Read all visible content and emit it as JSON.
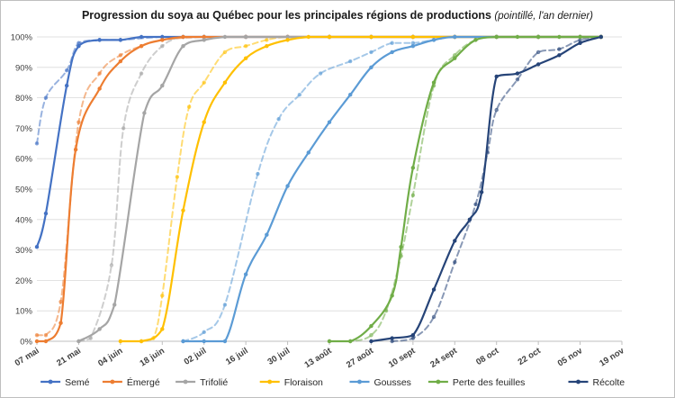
{
  "chart_data": {
    "type": "line",
    "title": "Progression du soya au Québec pour les principales régions de productions",
    "subtitle": "(pointillé, l'an dernier)",
    "ylim": [
      0,
      100
    ],
    "yticks": [
      "0%",
      "10%",
      "20%",
      "30%",
      "40%",
      "50%",
      "60%",
      "70%",
      "80%",
      "90%",
      "100%"
    ],
    "x_dates": [
      "07 mai",
      "21 mai",
      "04 juin",
      "18 juin",
      "02 juil",
      "16 juil",
      "30 juil",
      "13 août",
      "27 août",
      "10 sept",
      "24 sept",
      "08 oct",
      "22 oct",
      "05 nov",
      "19 nov"
    ],
    "x_axis_start": "2023-05-07",
    "x_axis_end": "2023-11-19",
    "grid": "horizontal",
    "legend_position": "bottom",
    "series": [
      {
        "name": "Semé",
        "color": "#4472C4",
        "current": [
          [
            "2023-05-07",
            31
          ],
          [
            "2023-05-10",
            42
          ],
          [
            "2023-05-17",
            84
          ],
          [
            "2023-05-21",
            97
          ],
          [
            "2023-05-28",
            99
          ],
          [
            "2023-06-04",
            99
          ],
          [
            "2023-06-11",
            100
          ],
          [
            "2023-06-18",
            100
          ],
          [
            "2023-06-25",
            100
          ],
          [
            "2023-07-02",
            100
          ],
          [
            "2023-07-16",
            100
          ],
          [
            "2023-07-30",
            100
          ],
          [
            "2023-08-13",
            100
          ],
          [
            "2023-08-27",
            100
          ],
          [
            "2023-09-10",
            100
          ],
          [
            "2023-09-24",
            100
          ],
          [
            "2023-10-08",
            100
          ],
          [
            "2023-10-22",
            100
          ],
          [
            "2023-11-05",
            100
          ],
          [
            "2023-11-12",
            100
          ]
        ],
        "previous": [
          [
            "2023-05-07",
            65
          ],
          [
            "2023-05-10",
            80
          ],
          [
            "2023-05-17",
            89
          ],
          [
            "2023-05-21",
            98
          ],
          [
            "2023-05-28",
            99
          ],
          [
            "2023-06-04",
            99
          ],
          [
            "2023-06-18",
            100
          ],
          [
            "2023-07-02",
            100
          ],
          [
            "2023-07-16",
            100
          ],
          [
            "2023-07-30",
            100
          ],
          [
            "2023-08-13",
            100
          ],
          [
            "2023-08-27",
            100
          ],
          [
            "2023-09-10",
            100
          ],
          [
            "2023-09-24",
            100
          ],
          [
            "2023-10-08",
            100
          ],
          [
            "2023-10-22",
            100
          ],
          [
            "2023-11-05",
            100
          ],
          [
            "2023-11-12",
            100
          ]
        ]
      },
      {
        "name": "Émergé",
        "color": "#ED7D31",
        "current": [
          [
            "2023-05-07",
            0
          ],
          [
            "2023-05-10",
            0
          ],
          [
            "2023-05-15",
            6
          ],
          [
            "2023-05-20",
            63
          ],
          [
            "2023-05-28",
            83
          ],
          [
            "2023-06-04",
            92
          ],
          [
            "2023-06-11",
            97
          ],
          [
            "2023-06-18",
            99
          ],
          [
            "2023-06-25",
            100
          ],
          [
            "2023-07-02",
            100
          ],
          [
            "2023-07-16",
            100
          ],
          [
            "2023-07-30",
            100
          ],
          [
            "2023-08-13",
            100
          ],
          [
            "2023-08-27",
            100
          ],
          [
            "2023-09-10",
            100
          ],
          [
            "2023-09-24",
            100
          ],
          [
            "2023-10-08",
            100
          ],
          [
            "2023-10-22",
            100
          ],
          [
            "2023-11-05",
            100
          ],
          [
            "2023-11-12",
            100
          ]
        ],
        "previous": [
          [
            "2023-05-07",
            2
          ],
          [
            "2023-05-10",
            2
          ],
          [
            "2023-05-15",
            13
          ],
          [
            "2023-05-21",
            72
          ],
          [
            "2023-05-28",
            88
          ],
          [
            "2023-06-04",
            94
          ],
          [
            "2023-06-11",
            97
          ],
          [
            "2023-06-18",
            99
          ],
          [
            "2023-07-02",
            100
          ],
          [
            "2023-07-16",
            100
          ],
          [
            "2023-07-30",
            100
          ],
          [
            "2023-08-13",
            100
          ],
          [
            "2023-08-27",
            100
          ],
          [
            "2023-09-10",
            100
          ],
          [
            "2023-09-24",
            100
          ],
          [
            "2023-10-08",
            100
          ],
          [
            "2023-10-22",
            100
          ],
          [
            "2023-11-05",
            100
          ],
          [
            "2023-11-12",
            100
          ]
        ]
      },
      {
        "name": "Trifolié",
        "color": "#A5A5A5",
        "current": [
          [
            "2023-05-21",
            0
          ],
          [
            "2023-05-28",
            4
          ],
          [
            "2023-06-02",
            12
          ],
          [
            "2023-06-12",
            75
          ],
          [
            "2023-06-18",
            84
          ],
          [
            "2023-06-25",
            97
          ],
          [
            "2023-07-02",
            99
          ],
          [
            "2023-07-09",
            100
          ],
          [
            "2023-07-16",
            100
          ],
          [
            "2023-07-30",
            100
          ],
          [
            "2023-08-13",
            100
          ],
          [
            "2023-08-27",
            100
          ],
          [
            "2023-09-10",
            100
          ],
          [
            "2023-09-24",
            100
          ],
          [
            "2023-10-08",
            100
          ],
          [
            "2023-10-22",
            100
          ],
          [
            "2023-11-05",
            100
          ],
          [
            "2023-11-12",
            100
          ]
        ],
        "previous": [
          [
            "2023-05-21",
            0
          ],
          [
            "2023-05-25",
            1
          ],
          [
            "2023-06-01",
            25
          ],
          [
            "2023-06-05",
            70
          ],
          [
            "2023-06-11",
            88
          ],
          [
            "2023-06-18",
            97
          ],
          [
            "2023-06-25",
            100
          ],
          [
            "2023-07-02",
            100
          ],
          [
            "2023-07-16",
            100
          ],
          [
            "2023-07-30",
            100
          ],
          [
            "2023-08-13",
            100
          ],
          [
            "2023-08-27",
            100
          ],
          [
            "2023-09-10",
            100
          ],
          [
            "2023-09-24",
            100
          ],
          [
            "2023-10-08",
            100
          ],
          [
            "2023-10-22",
            100
          ],
          [
            "2023-11-05",
            100
          ],
          [
            "2023-11-12",
            100
          ]
        ]
      },
      {
        "name": "Floraison",
        "color": "#FFC000",
        "current": [
          [
            "2023-06-04",
            0
          ],
          [
            "2023-06-11",
            0
          ],
          [
            "2023-06-18",
            4
          ],
          [
            "2023-06-25",
            43
          ],
          [
            "2023-07-02",
            72
          ],
          [
            "2023-07-09",
            85
          ],
          [
            "2023-07-16",
            93
          ],
          [
            "2023-07-23",
            97
          ],
          [
            "2023-07-30",
            99
          ],
          [
            "2023-08-06",
            100
          ],
          [
            "2023-08-13",
            100
          ],
          [
            "2023-08-27",
            100
          ],
          [
            "2023-09-10",
            100
          ],
          [
            "2023-09-24",
            100
          ],
          [
            "2023-10-08",
            100
          ],
          [
            "2023-10-22",
            100
          ],
          [
            "2023-11-05",
            100
          ],
          [
            "2023-11-12",
            100
          ]
        ],
        "previous": [
          [
            "2023-06-11",
            0
          ],
          [
            "2023-06-15",
            1
          ],
          [
            "2023-06-18",
            15
          ],
          [
            "2023-06-23",
            54
          ],
          [
            "2023-06-27",
            77
          ],
          [
            "2023-07-02",
            85
          ],
          [
            "2023-07-09",
            95
          ],
          [
            "2023-07-16",
            97
          ],
          [
            "2023-07-23",
            99
          ],
          [
            "2023-07-30",
            100
          ],
          [
            "2023-08-13",
            100
          ],
          [
            "2023-08-27",
            100
          ],
          [
            "2023-09-10",
            100
          ],
          [
            "2023-09-24",
            100
          ],
          [
            "2023-10-08",
            100
          ],
          [
            "2023-10-22",
            100
          ],
          [
            "2023-11-05",
            100
          ],
          [
            "2023-11-12",
            100
          ]
        ]
      },
      {
        "name": "Gousses",
        "color": "#5B9BD5",
        "current": [
          [
            "2023-06-25",
            0
          ],
          [
            "2023-07-02",
            0
          ],
          [
            "2023-07-09",
            0
          ],
          [
            "2023-07-16",
            22
          ],
          [
            "2023-07-23",
            35
          ],
          [
            "2023-07-30",
            51
          ],
          [
            "2023-08-06",
            62
          ],
          [
            "2023-08-13",
            72
          ],
          [
            "2023-08-20",
            81
          ],
          [
            "2023-08-27",
            90
          ],
          [
            "2023-09-03",
            95
          ],
          [
            "2023-09-10",
            97
          ],
          [
            "2023-09-17",
            99
          ],
          [
            "2023-09-24",
            100
          ],
          [
            "2023-10-08",
            100
          ],
          [
            "2023-10-22",
            100
          ],
          [
            "2023-11-05",
            100
          ],
          [
            "2023-11-12",
            100
          ]
        ],
        "previous": [
          [
            "2023-06-25",
            0
          ],
          [
            "2023-07-02",
            3
          ],
          [
            "2023-07-09",
            12
          ],
          [
            "2023-07-20",
            55
          ],
          [
            "2023-07-27",
            73
          ],
          [
            "2023-08-03",
            81
          ],
          [
            "2023-08-10",
            88
          ],
          [
            "2023-08-20",
            92
          ],
          [
            "2023-08-27",
            95
          ],
          [
            "2023-09-03",
            98
          ],
          [
            "2023-09-10",
            98
          ],
          [
            "2023-09-17",
            99
          ],
          [
            "2023-09-24",
            100
          ],
          [
            "2023-10-08",
            100
          ],
          [
            "2023-10-22",
            100
          ],
          [
            "2023-11-05",
            100
          ],
          [
            "2023-11-12",
            100
          ]
        ]
      },
      {
        "name": "Perte des feuilles",
        "color": "#70AD47",
        "current": [
          [
            "2023-08-13",
            0
          ],
          [
            "2023-08-20",
            0
          ],
          [
            "2023-08-27",
            5
          ],
          [
            "2023-09-03",
            15
          ],
          [
            "2023-09-06",
            31
          ],
          [
            "2023-09-10",
            57
          ],
          [
            "2023-09-17",
            85
          ],
          [
            "2023-09-24",
            93
          ],
          [
            "2023-10-01",
            99
          ],
          [
            "2023-10-08",
            100
          ],
          [
            "2023-10-15",
            100
          ],
          [
            "2023-10-22",
            100
          ],
          [
            "2023-10-29",
            100
          ],
          [
            "2023-11-05",
            100
          ],
          [
            "2023-11-12",
            100
          ]
        ],
        "previous": [
          [
            "2023-08-13",
            0
          ],
          [
            "2023-08-20",
            0
          ],
          [
            "2023-08-27",
            2
          ],
          [
            "2023-09-01",
            10
          ],
          [
            "2023-09-06",
            28
          ],
          [
            "2023-09-10",
            48
          ],
          [
            "2023-09-17",
            84
          ],
          [
            "2023-09-24",
            94
          ],
          [
            "2023-10-01",
            99
          ],
          [
            "2023-10-08",
            100
          ],
          [
            "2023-10-22",
            100
          ],
          [
            "2023-11-05",
            100
          ],
          [
            "2023-11-12",
            100
          ]
        ]
      },
      {
        "name": "Récolte",
        "color": "#264478",
        "current": [
          [
            "2023-08-27",
            0
          ],
          [
            "2023-09-03",
            1
          ],
          [
            "2023-09-10",
            2
          ],
          [
            "2023-09-17",
            17
          ],
          [
            "2023-09-24",
            33
          ],
          [
            "2023-09-29",
            40
          ],
          [
            "2023-10-03",
            49
          ],
          [
            "2023-10-08",
            87
          ],
          [
            "2023-10-15",
            88
          ],
          [
            "2023-10-22",
            91
          ],
          [
            "2023-10-29",
            94
          ],
          [
            "2023-11-05",
            98
          ],
          [
            "2023-11-12",
            100
          ]
        ],
        "previous": [
          [
            "2023-09-03",
            0
          ],
          [
            "2023-09-10",
            1
          ],
          [
            "2023-09-17",
            8
          ],
          [
            "2023-09-24",
            26
          ],
          [
            "2023-10-01",
            45
          ],
          [
            "2023-10-05",
            62
          ],
          [
            "2023-10-08",
            76
          ],
          [
            "2023-10-15",
            86
          ],
          [
            "2023-10-22",
            95
          ],
          [
            "2023-10-29",
            96
          ],
          [
            "2023-11-05",
            99
          ],
          [
            "2023-11-12",
            100
          ]
        ]
      }
    ]
  }
}
